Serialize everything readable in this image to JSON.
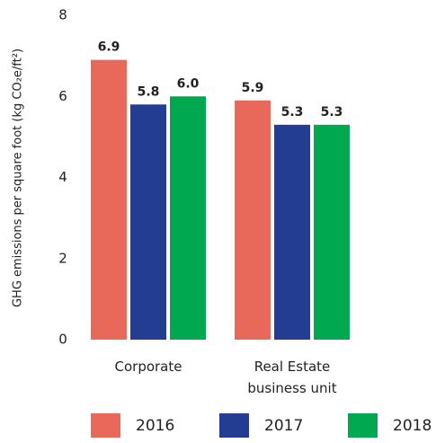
{
  "chart_data": {
    "type": "bar",
    "y_label": "GHG emissions per square foot (kg CO₂e/ft²)",
    "categories": [
      "Corporate",
      "Real Estate business unit"
    ],
    "series": [
      {
        "name": "2016",
        "color": "#e8695a",
        "values": [
          6.9,
          5.9
        ],
        "value_labels": [
          "6.9",
          "5.9"
        ]
      },
      {
        "name": "2017",
        "color": "#233d93",
        "values": [
          5.8,
          5.3
        ],
        "value_labels": [
          "5.8",
          "5.3"
        ]
      },
      {
        "name": "2018",
        "color": "#00a94f",
        "values": [
          6.0,
          5.3
        ],
        "value_labels": [
          "6.0",
          "5.3"
        ]
      }
    ],
    "ylim": [
      0,
      8
    ],
    "yticks": [
      0,
      2,
      4,
      6,
      8
    ],
    "grid": false
  }
}
